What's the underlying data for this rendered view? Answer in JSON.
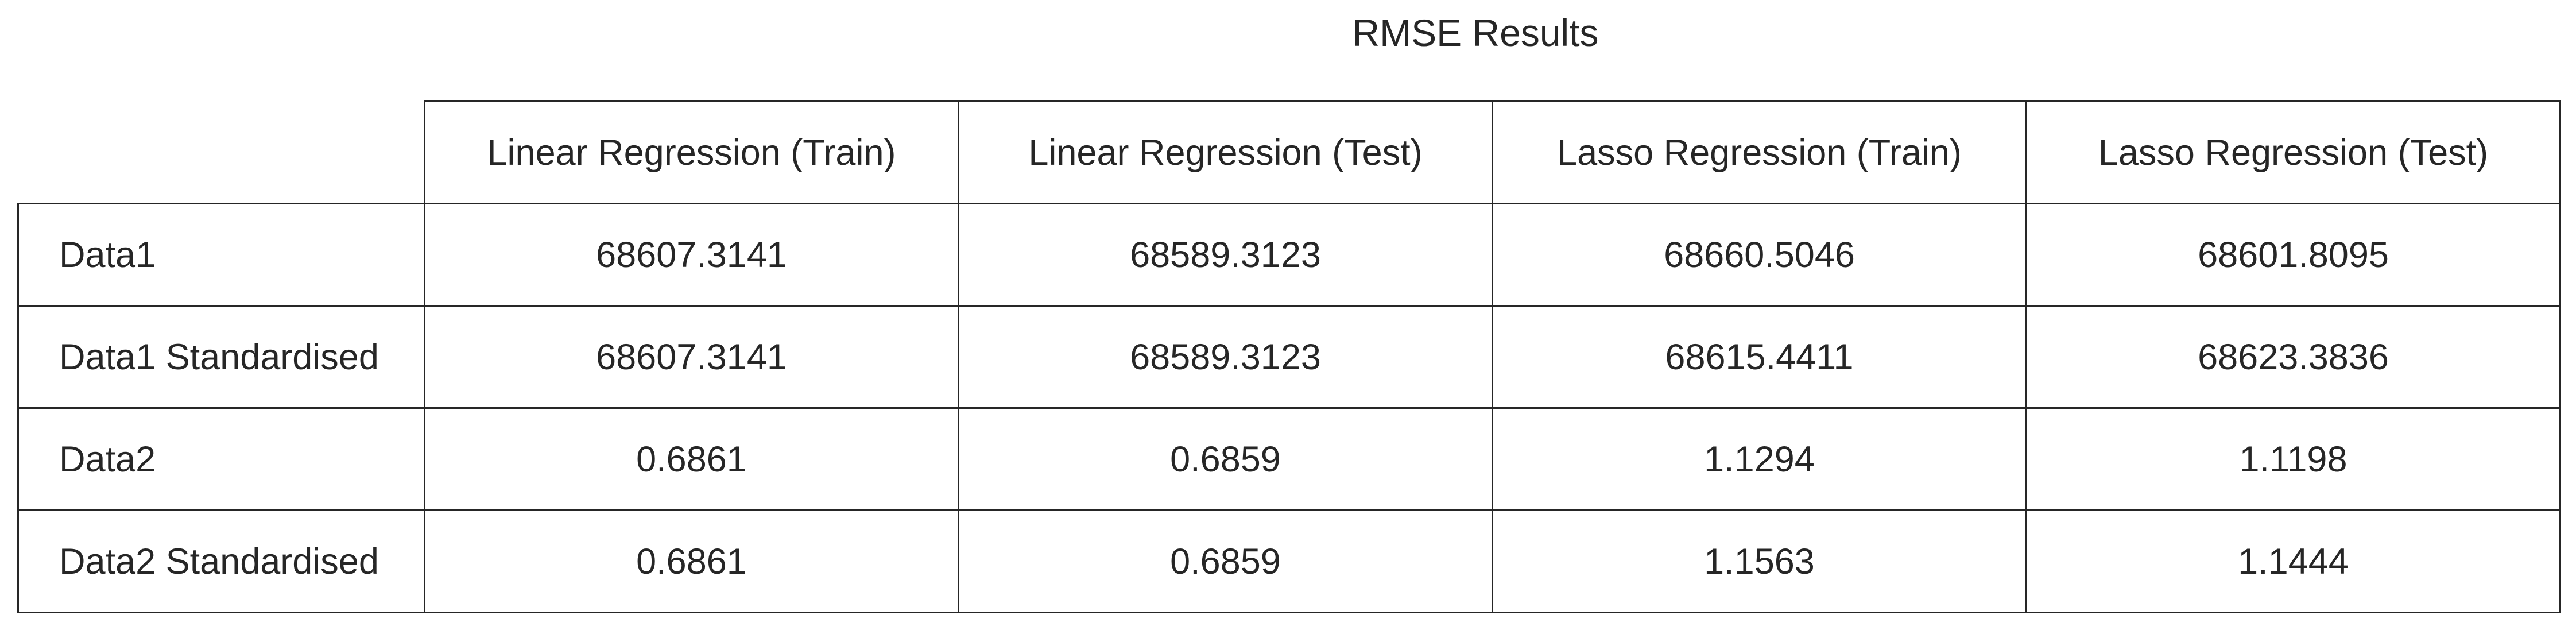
{
  "chart_data": {
    "type": "table",
    "title": "RMSE Results",
    "columns": [
      "Linear Regression (Train)",
      "Linear Regression (Test)",
      "Lasso Regression (Train)",
      "Lasso Regression (Test)"
    ],
    "rows": [
      {
        "label": "Data1",
        "values": [
          "68607.3141",
          "68589.3123",
          "68660.5046",
          "68601.8095"
        ]
      },
      {
        "label": "Data1 Standardised",
        "values": [
          "68607.3141",
          "68589.3123",
          "68615.4411",
          "68623.3836"
        ]
      },
      {
        "label": "Data2",
        "values": [
          "0.6861",
          "0.6859",
          "1.1294",
          "1.1198"
        ]
      },
      {
        "label": "Data2 Standardised",
        "values": [
          "0.6861",
          "0.6859",
          "1.1563",
          "1.1444"
        ]
      }
    ]
  }
}
